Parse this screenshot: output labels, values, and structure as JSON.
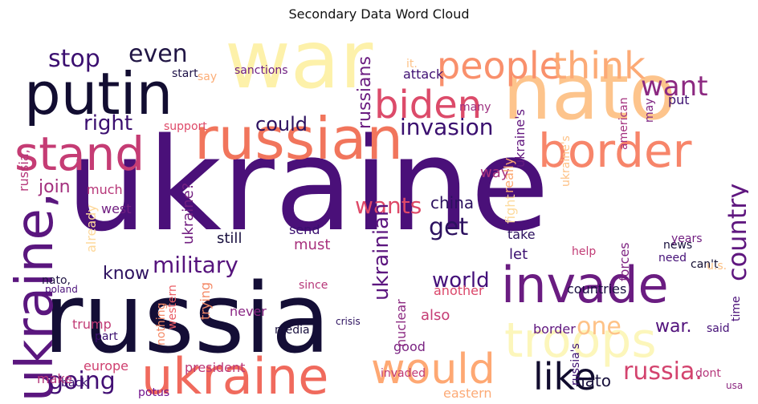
{
  "chart_data": {
    "type": "word_cloud",
    "title": "Secondary Data Word Cloud",
    "colormap": "magma",
    "words": [
      {
        "text": "ukraine",
        "c": "#4a1079"
      },
      {
        "text": "russia",
        "c": "#140e36"
      },
      {
        "text": "war",
        "c": "#fdf1aa"
      },
      {
        "text": "nato",
        "c": "#fdc48c"
      },
      {
        "text": "putin",
        "c": "#120d31"
      },
      {
        "text": "russian",
        "c": "#f1755c"
      },
      {
        "text": "ukraine",
        "c": "#f06a5d"
      },
      {
        "text": "invade",
        "c": "#6a1c81"
      },
      {
        "text": "troops",
        "c": "#fcf6bb"
      },
      {
        "text": "stand",
        "c": "#c53c74"
      },
      {
        "text": "border",
        "c": "#f7856a"
      },
      {
        "text": "ukraine,",
        "c": "#5a167e"
      },
      {
        "text": "would",
        "c": "#fea873"
      },
      {
        "text": "biden",
        "c": "#dc4b6a"
      },
      {
        "text": "people",
        "c": "#f9906c"
      },
      {
        "text": "think",
        "c": "#fcaa76"
      },
      {
        "text": "like",
        "c": "#110c2e"
      },
      {
        "text": "want",
        "c": "#8c2981"
      },
      {
        "text": "stop",
        "c": "#3b0f70"
      },
      {
        "text": "even",
        "c": "#211645"
      },
      {
        "text": "military",
        "c": "#56147d"
      },
      {
        "text": "country",
        "c": "#5f177f"
      },
      {
        "text": "invasion",
        "c": "#3a0f6f"
      },
      {
        "text": "could",
        "c": "#2d1160"
      },
      {
        "text": "right",
        "c": "#3b0f70"
      },
      {
        "text": "going",
        "c": "#420f74"
      },
      {
        "text": "russia.",
        "c": "#d3436e"
      },
      {
        "text": "get",
        "c": "#2c115f"
      },
      {
        "text": "wants",
        "c": "#de4968"
      },
      {
        "text": "world",
        "c": "#44107a"
      },
      {
        "text": "one",
        "c": "#fec287"
      },
      {
        "text": "know",
        "c": "#2d115f"
      },
      {
        "text": "ukrainian",
        "c": "#5c167f"
      },
      {
        "text": "war.",
        "c": "#51127c"
      },
      {
        "text": "join",
        "c": "#a3307e"
      },
      {
        "text": "support",
        "c": "#de4968"
      },
      {
        "text": "much",
        "c": "#b73779"
      },
      {
        "text": "russians",
        "c": "#6b1d81"
      },
      {
        "text": "europe",
        "c": "#cf4070"
      },
      {
        "text": "president",
        "c": "#bd3977"
      },
      {
        "text": "sanctions",
        "c": "#6e1e81"
      },
      {
        "text": "ukraine?",
        "c": "#721f81"
      },
      {
        "text": "nato",
        "c": "#160f3b"
      },
      {
        "text": "china",
        "c": "#2c115f"
      },
      {
        "text": "west",
        "c": "#701f81"
      },
      {
        "text": "ukraine's",
        "c": "#641a80"
      },
      {
        "text": "also",
        "c": "#c53c74"
      },
      {
        "text": "say",
        "c": "#fcae78"
      },
      {
        "text": "start",
        "c": "#1d1147"
      },
      {
        "text": "trump",
        "c": "#c13b75"
      },
      {
        "text": "attack",
        "c": "#3e0f72"
      },
      {
        "text": "russia,",
        "c": "#b5367a"
      },
      {
        "text": "may",
        "c": "#7e2482"
      },
      {
        "text": "put",
        "c": "#3b0f70"
      },
      {
        "text": "american",
        "c": "#a3307e"
      },
      {
        "text": "many",
        "c": "#9e2f7f"
      },
      {
        "text": "way",
        "c": "#a8327d"
      },
      {
        "text": "still",
        "c": "#180f3e"
      },
      {
        "text": "must",
        "c": "#a8327d"
      },
      {
        "text": "let",
        "c": "#3b0f70"
      },
      {
        "text": "take",
        "c": "#2c115f"
      },
      {
        "text": "news",
        "c": "#170f3c"
      },
      {
        "text": "fight",
        "c": "#fdda9c"
      },
      {
        "text": "send",
        "c": "#3a0f6f"
      },
      {
        "text": "need",
        "c": "#451077"
      },
      {
        "text": "help",
        "c": "#c13b75"
      },
      {
        "text": "countries",
        "c": "#190f40"
      },
      {
        "text": "forces",
        "c": "#7e2482"
      },
      {
        "text": "time",
        "c": "#4a1079"
      },
      {
        "text": "years",
        "c": "#721f81"
      },
      {
        "text": "said",
        "c": "#451077"
      },
      {
        "text": "back",
        "c": "#3b0f70"
      },
      {
        "text": "good",
        "c": "#7a2382"
      },
      {
        "text": "border",
        "c": "#611880"
      },
      {
        "text": "never",
        "c": "#8a2785"
      },
      {
        "text": "since",
        "c": "#b73779"
      },
      {
        "text": "part",
        "c": "#3a0f6f"
      },
      {
        "text": "nuclear",
        "c": "#8c2981"
      },
      {
        "text": "another",
        "c": "#db476a"
      },
      {
        "text": "potus",
        "c": "#71138c"
      },
      {
        "text": "make",
        "c": "#b5367a"
      },
      {
        "text": "weapons",
        "c": "#120d31"
      },
      {
        "text": "eastern",
        "c": "#fcaa76"
      },
      {
        "text": "dont",
        "c": "#b5367a"
      },
      {
        "text": "russia's",
        "c": "#3b0f70"
      },
      {
        "text": "u.s.",
        "c": "#fbc084"
      },
      {
        "text": "can't",
        "c": "#120d31"
      },
      {
        "text": "usa",
        "c": "#8c2981"
      },
      {
        "text": "nato,",
        "c": "#211645"
      },
      {
        "text": "poland",
        "c": "#4b117a"
      },
      {
        "text": "really",
        "c": "#fca972"
      },
      {
        "text": "already",
        "c": "#fdd89a"
      },
      {
        "text": "trying",
        "c": "#f48a67"
      },
      {
        "text": "nothing",
        "c": "#f48a67"
      },
      {
        "text": "western",
        "c": "#ea5c64"
      },
      {
        "text": "ukraine's",
        "c": "#fec287"
      },
      {
        "text": "media",
        "c": "#180f3e"
      },
      {
        "text": "crisis",
        "c": "#2c115f"
      },
      {
        "text": "invaded",
        "c": "#c13b75"
      },
      {
        "text": "it.",
        "c": "#fec287"
      }
    ]
  }
}
